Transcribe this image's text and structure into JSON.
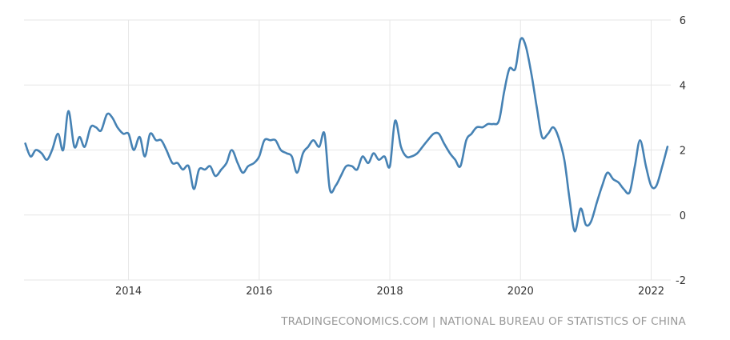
{
  "chart_data": {
    "type": "line",
    "title": "",
    "xlabel": "",
    "ylabel": "",
    "ylim": [
      -2,
      6
    ],
    "xlim": [
      2012.4,
      2022.3
    ],
    "y_ticks": [
      "6",
      "4",
      "2",
      "0",
      "-2"
    ],
    "x_ticks": [
      "2014",
      "2016",
      "2018",
      "2020",
      "2022"
    ],
    "grid": true,
    "legend": "none",
    "line_color": "#4682b4",
    "series": [
      {
        "x": [
          2012.42,
          2012.5,
          2012.58,
          2012.67,
          2012.75,
          2012.83,
          2012.92,
          2013.0,
          2013.08,
          2013.17,
          2013.25,
          2013.33,
          2013.42,
          2013.5,
          2013.58,
          2013.67,
          2013.75,
          2013.83,
          2013.92,
          2014.0,
          2014.08,
          2014.17,
          2014.25,
          2014.33,
          2014.42,
          2014.5,
          2014.58,
          2014.67,
          2014.75,
          2014.83,
          2014.92,
          2015.0,
          2015.08,
          2015.17,
          2015.25,
          2015.33,
          2015.42,
          2015.5,
          2015.58,
          2015.67,
          2015.75,
          2015.83,
          2015.92,
          2016.0,
          2016.08,
          2016.17,
          2016.25,
          2016.33,
          2016.42,
          2016.5,
          2016.58,
          2016.67,
          2016.75,
          2016.83,
          2016.92,
          2017.0,
          2017.08,
          2017.17,
          2017.25,
          2017.33,
          2017.42,
          2017.5,
          2017.58,
          2017.67,
          2017.75,
          2017.83,
          2017.92,
          2018.0,
          2018.08,
          2018.17,
          2018.25,
          2018.33,
          2018.42,
          2018.5,
          2018.58,
          2018.67,
          2018.75,
          2018.83,
          2018.92,
          2019.0,
          2019.08,
          2019.17,
          2019.25,
          2019.33,
          2019.42,
          2019.5,
          2019.58,
          2019.67,
          2019.75,
          2019.83,
          2019.92,
          2020.0,
          2020.08,
          2020.17,
          2020.25,
          2020.33,
          2020.42,
          2020.5,
          2020.58,
          2020.67,
          2020.75,
          2020.83,
          2020.92,
          2021.0,
          2021.08,
          2021.17,
          2021.25,
          2021.33,
          2021.42,
          2021.5,
          2021.58,
          2021.67,
          2021.75,
          2021.83,
          2021.92,
          2022.0,
          2022.08,
          2022.17,
          2022.25
        ],
        "y": [
          2.2,
          1.8,
          2.0,
          1.9,
          1.7,
          2.0,
          2.5,
          2.0,
          3.2,
          2.1,
          2.4,
          2.1,
          2.7,
          2.7,
          2.6,
          3.1,
          3.0,
          2.7,
          2.5,
          2.5,
          2.0,
          2.4,
          1.8,
          2.5,
          2.3,
          2.3,
          2.0,
          1.6,
          1.6,
          1.4,
          1.5,
          0.8,
          1.4,
          1.4,
          1.5,
          1.2,
          1.4,
          1.6,
          2.0,
          1.6,
          1.3,
          1.5,
          1.6,
          1.8,
          2.3,
          2.3,
          2.3,
          2.0,
          1.9,
          1.8,
          1.3,
          1.9,
          2.1,
          2.3,
          2.1,
          2.5,
          0.8,
          0.9,
          1.2,
          1.5,
          1.5,
          1.4,
          1.8,
          1.6,
          1.9,
          1.7,
          1.8,
          1.5,
          2.9,
          2.1,
          1.8,
          1.8,
          1.9,
          2.1,
          2.3,
          2.5,
          2.5,
          2.2,
          1.9,
          1.7,
          1.5,
          2.3,
          2.5,
          2.7,
          2.7,
          2.8,
          2.8,
          2.9,
          3.8,
          4.5,
          4.5,
          5.4,
          5.2,
          4.3,
          3.3,
          2.4,
          2.5,
          2.7,
          2.4,
          1.7,
          0.5,
          -0.5,
          0.2,
          -0.3,
          -0.2,
          0.4,
          0.9,
          1.3,
          1.1,
          1.0,
          0.8,
          0.7,
          1.5,
          2.3,
          1.5,
          0.9,
          0.9,
          1.5,
          2.1
        ]
      }
    ]
  },
  "source": "TRADINGECONOMICS.COM | NATIONAL BUREAU OF STATISTICS OF CHINA"
}
